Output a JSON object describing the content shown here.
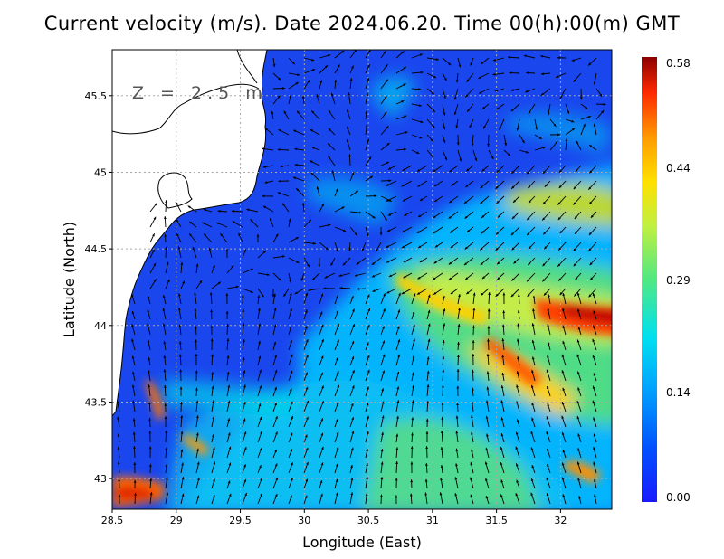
{
  "title": "Current velocity (m/s). Date 2024.06.20. Time 00(h):00(m) GMT",
  "depth_label": "Z = 2.5 m",
  "x_axis": {
    "label": "Longitude (East)",
    "range": [
      28.5,
      32.4
    ],
    "ticks": [
      "28.5",
      "29",
      "29.5",
      "30",
      "30.5",
      "31",
      "31.5",
      "32"
    ]
  },
  "y_axis": {
    "label": "Latitude (North)",
    "range": [
      42.8,
      45.8
    ],
    "ticks": [
      "43",
      "43.5",
      "44",
      "44.5",
      "45",
      "45.5"
    ]
  },
  "colorbar": {
    "min": 0.0,
    "max": 0.58,
    "labels": [
      "0.58",
      "0.44",
      "0.29",
      "0.14",
      "0.00"
    ],
    "colors": [
      "#1a1aff",
      "#0066ff",
      "#00b4ff",
      "#00e6e6",
      "#55e67a",
      "#c8f03c",
      "#ffe000",
      "#ff9900",
      "#ff2800",
      "#8b0000"
    ]
  },
  "grid": true,
  "land_color": "#ffffff",
  "icons": [
    "vector-arrow-icon"
  ]
}
